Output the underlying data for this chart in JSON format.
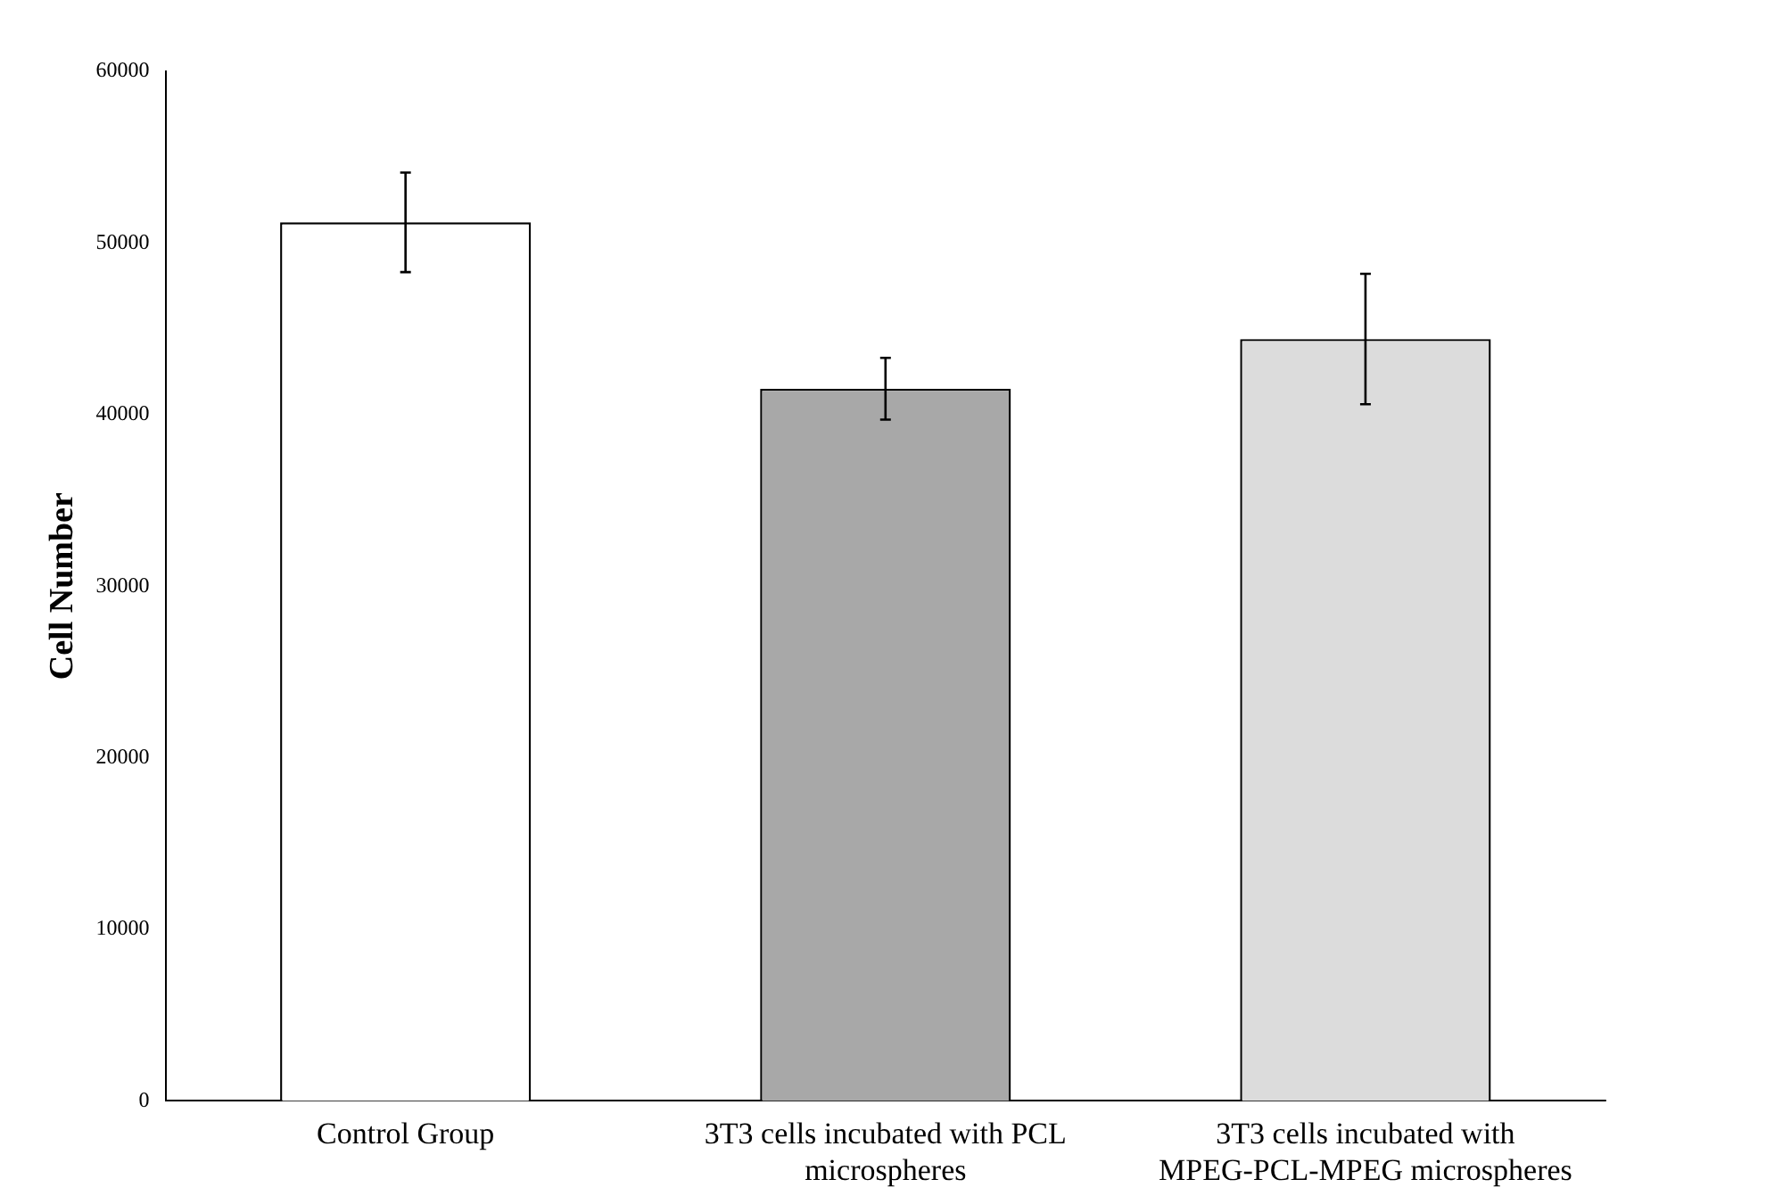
{
  "chart_data": {
    "type": "bar",
    "ylabel": "Cell Number",
    "categories": [
      "Control Group",
      "3T3 cells incubated with PCL microspheres",
      "3T3 cells incubated with MPEG-PCL-MPEG microspheres"
    ],
    "values": [
      51200,
      41500,
      44400
    ],
    "errors": [
      2900,
      1800,
      3800
    ],
    "colors": [
      "#ffffff",
      "#a8a8a8",
      "#dcdcdc"
    ],
    "ylim": [
      0,
      60000
    ],
    "yticks": [
      0,
      10000,
      20000,
      30000,
      40000,
      50000,
      60000
    ],
    "grid": false,
    "legend": false
  }
}
